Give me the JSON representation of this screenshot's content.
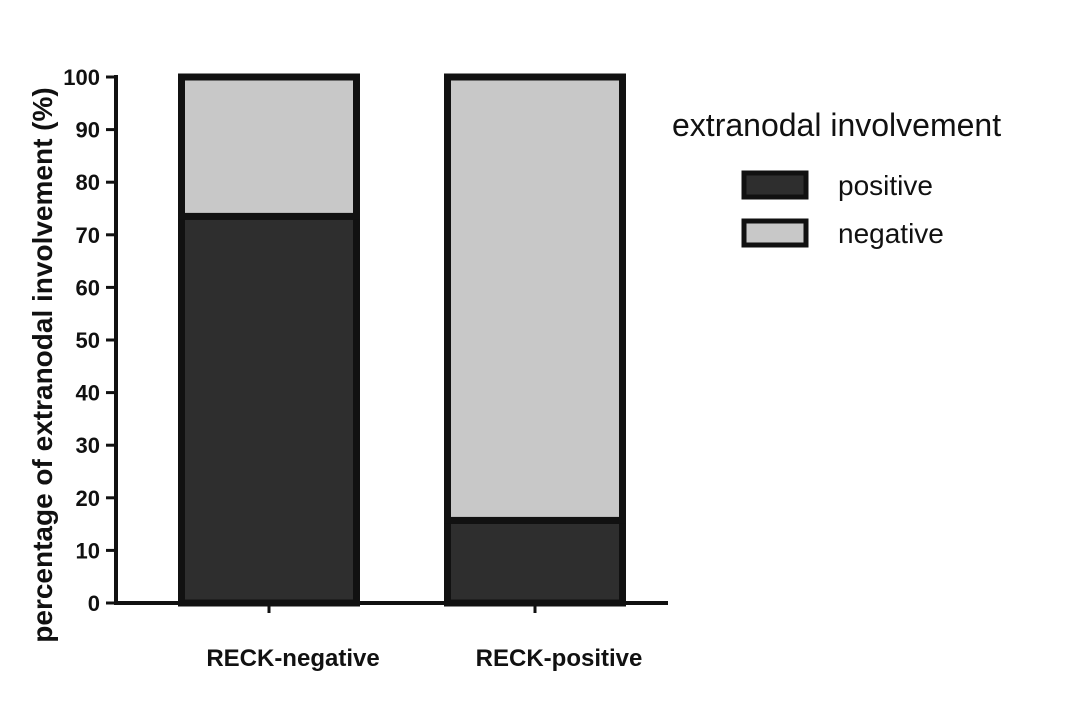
{
  "chart_data": {
    "type": "bar",
    "stacked": true,
    "categories": [
      "RECK-negative",
      "RECK-positive"
    ],
    "series": [
      {
        "name": "positive",
        "values": [
          73.5,
          15.7
        ],
        "color": "#2e2e2e"
      },
      {
        "name": "negative",
        "values": [
          26.5,
          84.3
        ],
        "color": "#c8c8c8"
      }
    ],
    "ylabel": "percentage of extranodal involvement (%)",
    "xlabel": "",
    "ylim": [
      0,
      100
    ],
    "yticks": [
      0,
      10,
      20,
      30,
      40,
      50,
      60,
      70,
      80,
      90,
      100
    ],
    "grid": false,
    "legend": {
      "title": "extranodal involvement",
      "position": "right",
      "entries": [
        "positive",
        "negative"
      ]
    },
    "colors": {
      "axis": "#111111",
      "bar_outline": "#111111"
    }
  }
}
